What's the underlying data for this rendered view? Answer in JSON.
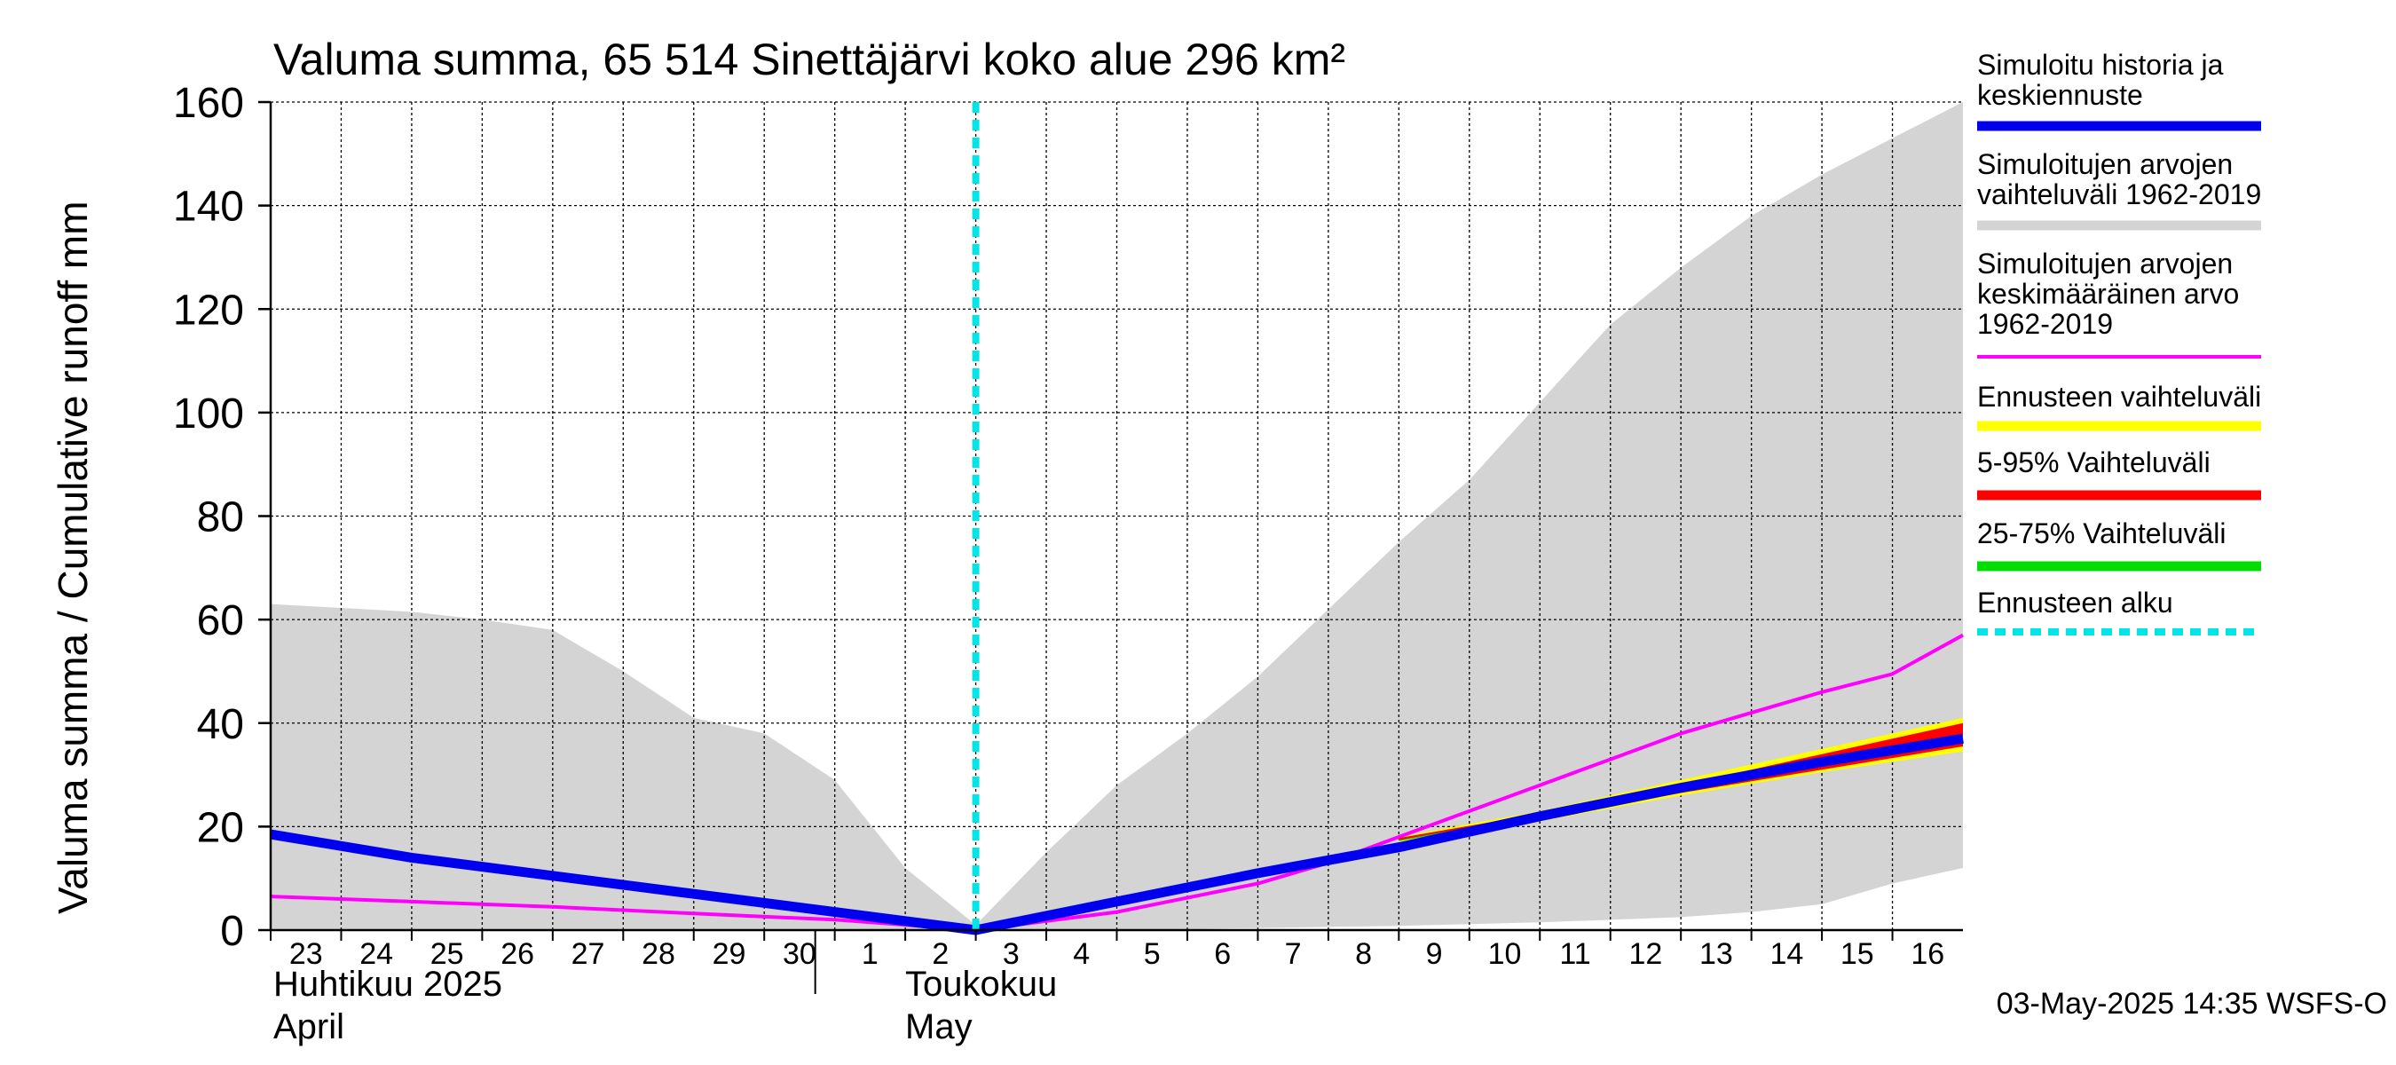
{
  "title": "Valuma summa, 65 514 Sinettäjärvi koko alue 296 km²",
  "y_axis_label": "Valuma summa / Cumulative runoff    mm",
  "x_month_labels": {
    "april_fi": "Huhtikuu  2025",
    "april_en": "April",
    "may_fi": "Toukokuu",
    "may_en": "May"
  },
  "timestamp": "03-May-2025 14:35 WSFS-O",
  "colors": {
    "history": "#0000ee",
    "range_1962_2019": "#d4d4d4",
    "mean_1962_2019": "#ff00ff",
    "forecast_range": "#ffff00",
    "p5_95": "#ff0000",
    "p25_75": "#00dd00",
    "forecast_start": "#00e5e5"
  },
  "legend": [
    {
      "key": "history",
      "lines": [
        "Simuloitu historia ja",
        "keskiennuste"
      ],
      "style": "solid"
    },
    {
      "key": "range_1962_2019",
      "lines": [
        "Simuloitujen arvojen",
        "vaihteluväli 1962-2019"
      ],
      "style": "solid"
    },
    {
      "key": "mean_1962_2019",
      "lines": [
        "Simuloitujen arvojen",
        "keskimääräinen arvo",
        "   1962-2019"
      ],
      "style": "thin"
    },
    {
      "key": "forecast_range",
      "lines": [
        "Ennusteen vaihteluväli"
      ],
      "style": "solid"
    },
    {
      "key": "p5_95",
      "lines": [
        "5-95% Vaihteluväli"
      ],
      "style": "solid"
    },
    {
      "key": "p25_75",
      "lines": [
        "25-75% Vaihteluväli"
      ],
      "style": "solid"
    },
    {
      "key": "forecast_start",
      "lines": [
        "Ennusteen alku"
      ],
      "style": "dashed"
    }
  ],
  "chart_data": {
    "type": "line",
    "x_unit": "day index (0 = 23 April 2025)",
    "xlim": [
      0,
      24
    ],
    "ylim": [
      0,
      160
    ],
    "y_ticks": [
      0,
      20,
      40,
      60,
      80,
      100,
      120,
      140,
      160
    ],
    "x_ticks": [
      {
        "x": 0,
        "label": "23"
      },
      {
        "x": 1,
        "label": "24"
      },
      {
        "x": 2,
        "label": "25"
      },
      {
        "x": 3,
        "label": "26"
      },
      {
        "x": 4,
        "label": "27"
      },
      {
        "x": 5,
        "label": "28"
      },
      {
        "x": 6,
        "label": "29"
      },
      {
        "x": 7,
        "label": "30"
      },
      {
        "x": 8,
        "label": "1"
      },
      {
        "x": 9,
        "label": "2"
      },
      {
        "x": 10,
        "label": "3"
      },
      {
        "x": 11,
        "label": "4"
      },
      {
        "x": 12,
        "label": "5"
      },
      {
        "x": 13,
        "label": "6"
      },
      {
        "x": 14,
        "label": "7"
      },
      {
        "x": 15,
        "label": "8"
      },
      {
        "x": 16,
        "label": "9"
      },
      {
        "x": 17,
        "label": "10"
      },
      {
        "x": 18,
        "label": "11"
      },
      {
        "x": 19,
        "label": "12"
      },
      {
        "x": 20,
        "label": "13"
      },
      {
        "x": 21,
        "label": "14"
      },
      {
        "x": 22,
        "label": "15"
      },
      {
        "x": 23,
        "label": "16"
      }
    ],
    "month_divider_x": 8,
    "forecast_start_x": 10,
    "grid": true,
    "range_1962_2019": {
      "upper": [
        [
          0,
          63
        ],
        [
          2,
          61.5
        ],
        [
          3,
          60
        ],
        [
          4,
          58
        ],
        [
          5,
          50
        ],
        [
          6,
          41
        ],
        [
          7,
          38
        ],
        [
          8,
          29
        ],
        [
          9,
          12
        ],
        [
          10,
          1
        ],
        [
          11,
          15
        ],
        [
          12,
          28
        ],
        [
          13,
          38
        ],
        [
          14,
          49
        ],
        [
          15,
          62
        ],
        [
          16,
          75
        ],
        [
          17,
          87
        ],
        [
          18,
          102
        ],
        [
          19,
          117
        ],
        [
          20,
          128
        ],
        [
          21,
          138
        ],
        [
          22,
          146
        ],
        [
          23,
          153
        ],
        [
          24,
          160
        ]
      ],
      "lower": [
        [
          0,
          0
        ],
        [
          10,
          0
        ],
        [
          12,
          0
        ],
        [
          16,
          0.8
        ],
        [
          18,
          1.5
        ],
        [
          20,
          2.5
        ],
        [
          21,
          3.5
        ],
        [
          22,
          5
        ],
        [
          23,
          9
        ],
        [
          24,
          12
        ]
      ]
    },
    "series": [
      {
        "key": "history",
        "points": [
          [
            0,
            18.5
          ],
          [
            2,
            14
          ],
          [
            4,
            10.5
          ],
          [
            6,
            7
          ],
          [
            8,
            3.5
          ],
          [
            10,
            0
          ],
          [
            12,
            5.5
          ],
          [
            14,
            11
          ],
          [
            16,
            16
          ],
          [
            18,
            22
          ],
          [
            20,
            27.5
          ],
          [
            22,
            32.5
          ],
          [
            24,
            37
          ]
        ]
      },
      {
        "key": "mean_1962_2019",
        "points": [
          [
            0,
            6.5
          ],
          [
            2,
            5.5
          ],
          [
            4,
            4.5
          ],
          [
            6,
            3.2
          ],
          [
            8,
            2
          ],
          [
            10,
            0
          ],
          [
            12,
            3.5
          ],
          [
            14,
            9
          ],
          [
            15,
            13
          ],
          [
            16,
            18
          ],
          [
            17,
            23
          ],
          [
            18,
            28
          ],
          [
            19,
            33
          ],
          [
            20,
            38
          ],
          [
            21,
            42
          ],
          [
            22,
            46
          ],
          [
            23,
            49.5
          ],
          [
            24,
            57
          ]
        ]
      },
      {
        "key": "forecast_range",
        "upper": [
          [
            16,
            18
          ],
          [
            18,
            23
          ],
          [
            20,
            29
          ],
          [
            22,
            35
          ],
          [
            24,
            41
          ]
        ],
        "lower": [
          [
            16,
            17
          ],
          [
            18,
            21
          ],
          [
            20,
            26
          ],
          [
            22,
            30.5
          ],
          [
            24,
            34.5
          ]
        ]
      },
      {
        "key": "p5_95",
        "upper": [
          [
            16,
            17.8
          ],
          [
            18,
            22.5
          ],
          [
            20,
            28
          ],
          [
            22,
            34
          ],
          [
            24,
            40
          ]
        ],
        "lower": [
          [
            16,
            17.3
          ],
          [
            18,
            21.5
          ],
          [
            20,
            26.5
          ],
          [
            22,
            31
          ],
          [
            24,
            35.5
          ]
        ]
      },
      {
        "key": "p25_75",
        "upper": [
          [
            16,
            17.4
          ],
          [
            18,
            22.2
          ],
          [
            20,
            27.8
          ],
          [
            22,
            33
          ],
          [
            24,
            37.5
          ]
        ],
        "lower": [
          [
            16,
            17.2
          ],
          [
            18,
            22
          ],
          [
            20,
            27.3
          ],
          [
            22,
            32.3
          ],
          [
            24,
            36.5
          ]
        ]
      }
    ]
  }
}
